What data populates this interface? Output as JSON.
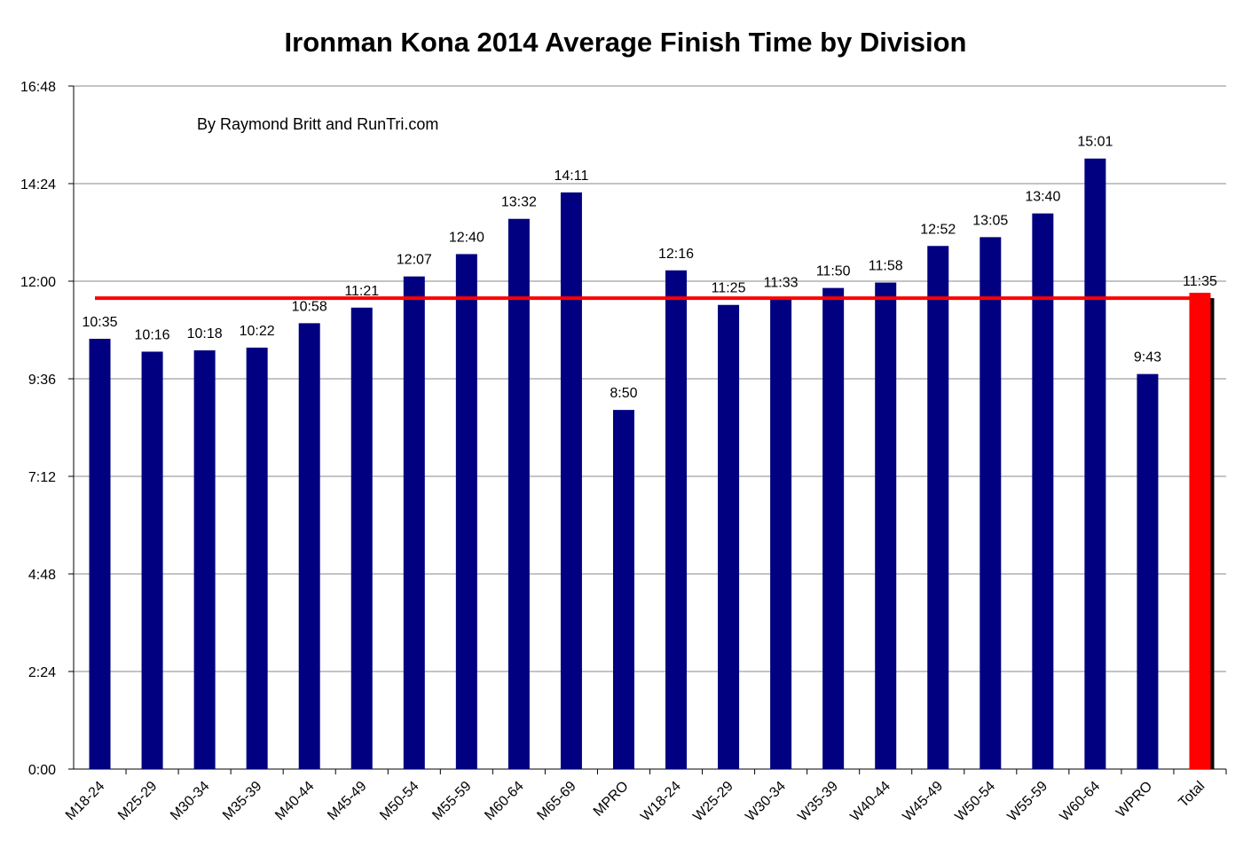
{
  "chart_data": {
    "type": "bar",
    "title": "Ironman Kona 2014 Average Finish Time by Division",
    "subtitle": "By Raymond Britt and RunTri.com",
    "xlabel": "",
    "ylabel": "",
    "y_unit": "hours:minutes",
    "ylim": [
      "0:00",
      "16:48"
    ],
    "y_ticks": [
      "0:00",
      "2:24",
      "4:48",
      "7:12",
      "9:36",
      "12:00",
      "14:24",
      "16:48"
    ],
    "grid": true,
    "legend": "none",
    "categories": [
      "M18-24",
      "M25-29",
      "M30-34",
      "M35-39",
      "M40-44",
      "M45-49",
      "M50-54",
      "M55-59",
      "M60-64",
      "M65-69",
      "MPRO",
      "W18-24",
      "W25-29",
      "W30-34",
      "W35-39",
      "W40-44",
      "W45-49",
      "W50-54",
      "W55-59",
      "W60-64",
      "WPRO",
      "Total"
    ],
    "values": [
      "10:35",
      "10:16",
      "10:18",
      "10:22",
      "10:58",
      "11:21",
      "12:07",
      "12:40",
      "13:32",
      "14:11",
      "8:50",
      "12:16",
      "11:25",
      "11:33",
      "11:50",
      "11:58",
      "12:52",
      "13:05",
      "13:40",
      "15:01",
      "9:43",
      "11:35"
    ],
    "reference_line": {
      "value": "11:35",
      "color": "#ff0000"
    },
    "colors": {
      "bar": "#000080",
      "total_bar": "#ff0000",
      "total_bar_shadow": "#000000",
      "grid": "#888888"
    }
  }
}
